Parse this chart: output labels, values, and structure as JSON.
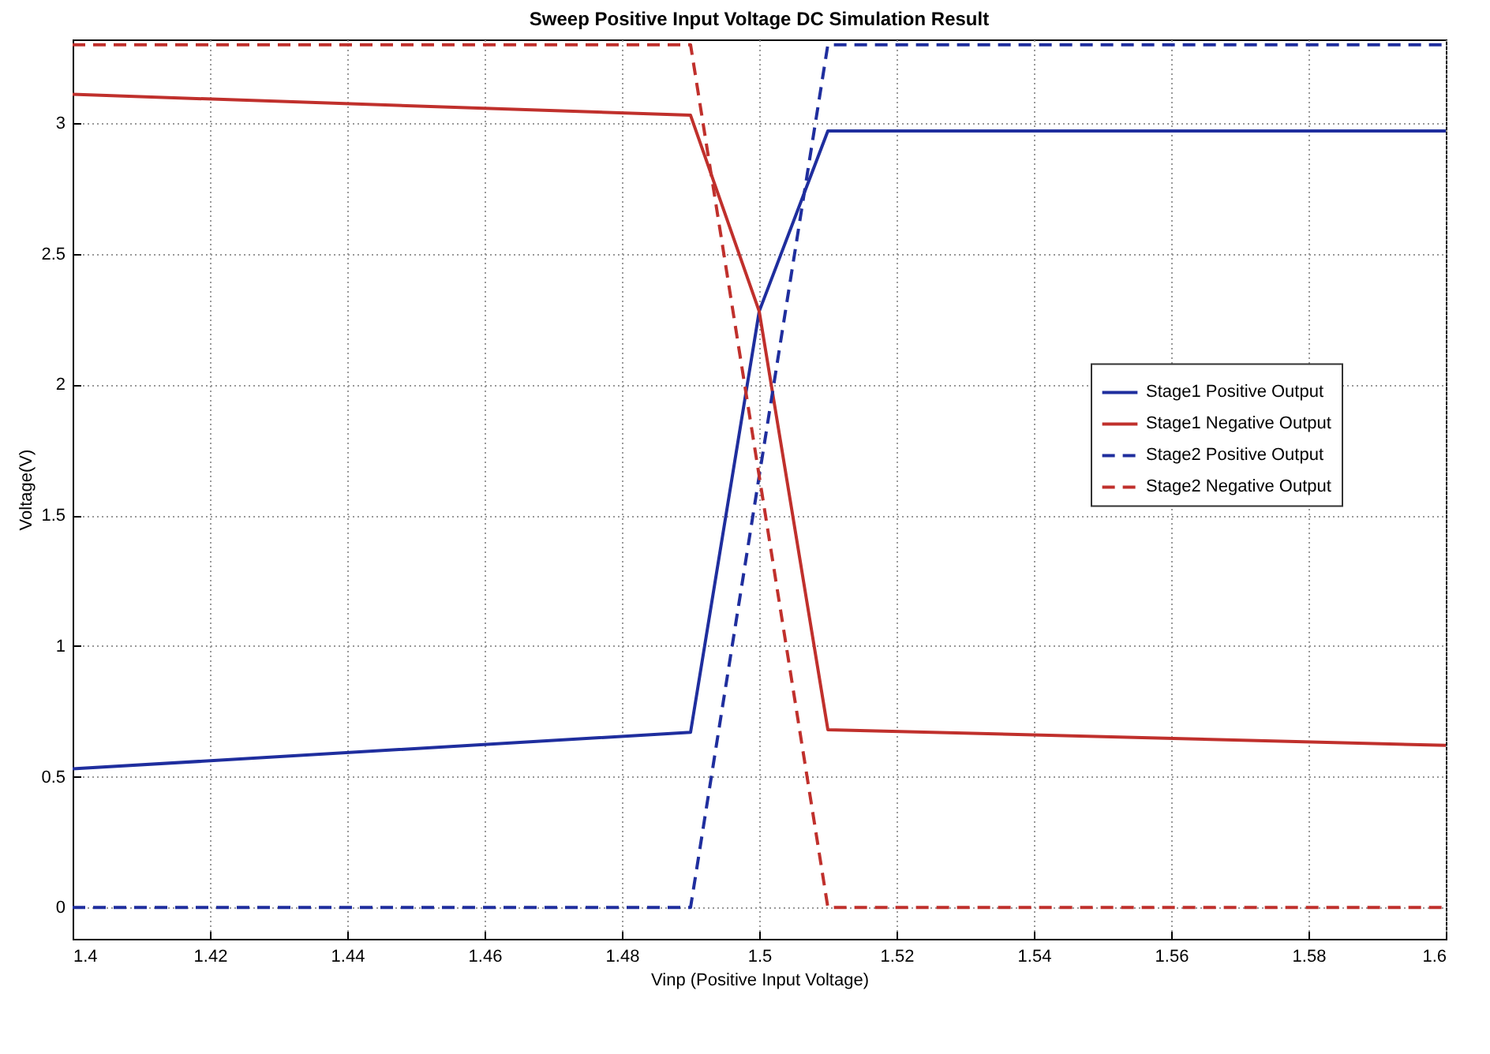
{
  "chart_data": {
    "type": "line",
    "title": "Sweep Positive Input Voltage DC Simulation Result",
    "xlabel": "Vinp (Positive Input Voltage)",
    "ylabel": "Voltage(V)",
    "xlim": [
      1.4,
      1.6
    ],
    "xticks": [
      1.4,
      1.42,
      1.44,
      1.46,
      1.48,
      1.5,
      1.52,
      1.54,
      1.56,
      1.58,
      1.6
    ],
    "ylim": [
      -0.12,
      3.32
    ],
    "yticks": [
      0,
      0.5,
      1,
      1.5,
      2,
      2.5,
      3
    ],
    "grid": true,
    "legend": "right",
    "series": [
      {
        "name": "Stage1 Positive Output",
        "color": "#1f2e9e",
        "line_style": "solid",
        "x": [
          1.4,
          1.49,
          1.5,
          1.51,
          1.6
        ],
        "values": [
          0.53,
          0.67,
          2.28,
          2.97,
          2.97
        ]
      },
      {
        "name": "Stage1 Negative Output",
        "color": "#c0302c",
        "line_style": "solid",
        "x": [
          1.4,
          1.49,
          1.5,
          1.51,
          1.6
        ],
        "values": [
          3.11,
          3.03,
          2.28,
          0.68,
          0.62
        ]
      },
      {
        "name": "Stage2 Positive Output",
        "color": "#1f2e9e",
        "line_style": "dashed",
        "x": [
          1.4,
          1.49,
          1.5,
          1.51,
          1.6
        ],
        "values": [
          0,
          0,
          1.65,
          3.3,
          3.3
        ]
      },
      {
        "name": "Stage2 Negative Output",
        "color": "#c0302c",
        "line_style": "dashed",
        "x": [
          1.4,
          1.49,
          1.5,
          1.51,
          1.6
        ],
        "values": [
          3.3,
          3.3,
          1.65,
          0,
          0
        ]
      }
    ]
  }
}
